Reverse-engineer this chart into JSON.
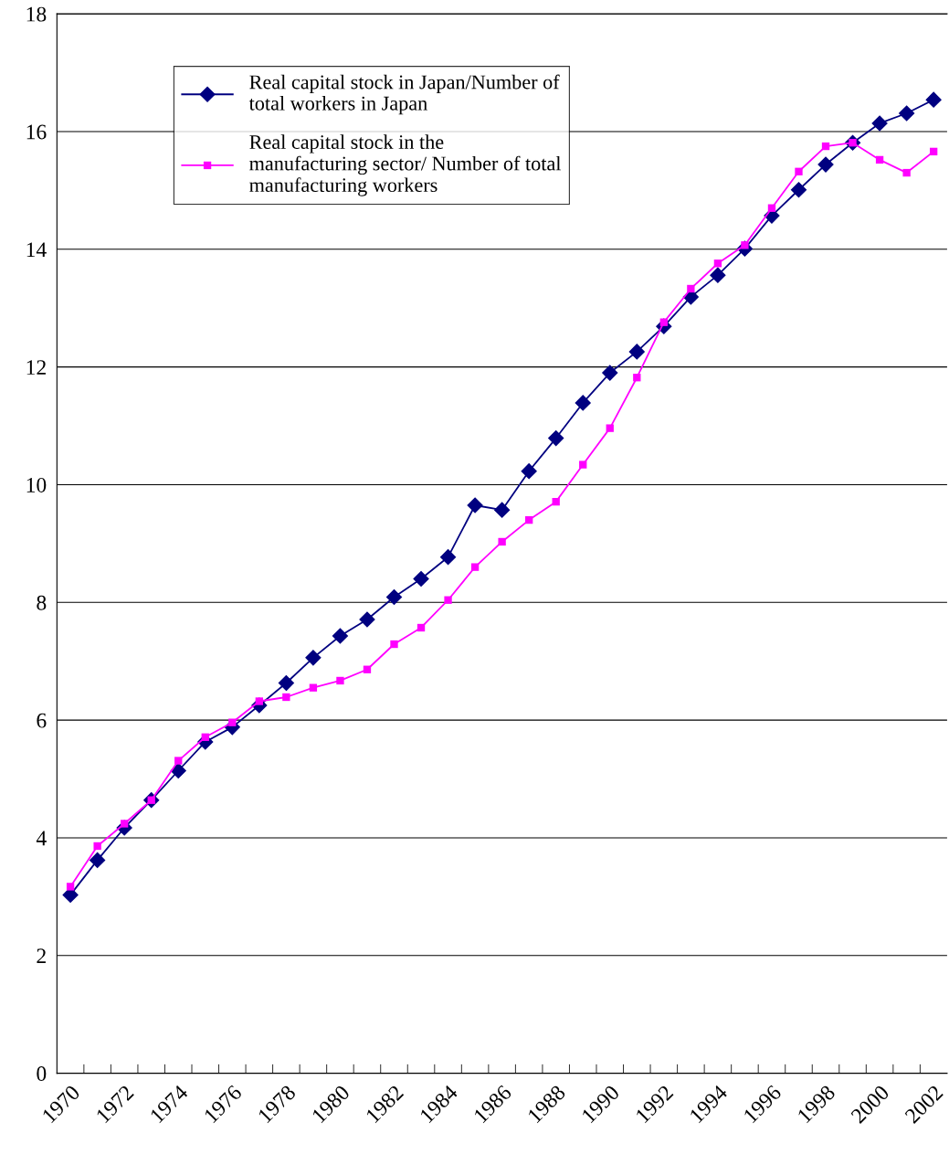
{
  "chart_data": {
    "type": "line",
    "categories": [
      "1970",
      null,
      "1972",
      null,
      "1974",
      null,
      "1976",
      null,
      "1978",
      null,
      "1980",
      null,
      "1982",
      null,
      "1984",
      null,
      "1986",
      null,
      "1988",
      null,
      "1990",
      null,
      "1992",
      null,
      "1994",
      null,
      "1996",
      null,
      "1998",
      null,
      "2000",
      null,
      "2002"
    ],
    "series": [
      {
        "name": "Real capital stock in Japan/Number of total workers in Japan",
        "color": "#000080",
        "marker": "diamond",
        "values": [
          3.03,
          3.62,
          4.17,
          4.64,
          5.14,
          5.63,
          5.88,
          6.25,
          6.63,
          7.06,
          7.43,
          7.71,
          8.09,
          8.4,
          8.77,
          9.65,
          9.57,
          10.23,
          10.79,
          11.39,
          11.9,
          12.26,
          12.69,
          13.19,
          13.56,
          14.01,
          14.57,
          15.01,
          15.44,
          15.81,
          16.14,
          16.31,
          16.54
        ]
      },
      {
        "name": "Real capital stock in the manufacturing sector/ Number of total manufacturing workers",
        "color": "#ff00ff",
        "marker": "square",
        "values": [
          3.17,
          3.86,
          4.24,
          4.64,
          5.31,
          5.71,
          5.96,
          6.32,
          6.39,
          6.55,
          6.67,
          6.86,
          7.29,
          7.57,
          8.04,
          8.6,
          9.03,
          9.4,
          9.71,
          10.34,
          10.96,
          11.82,
          12.76,
          13.33,
          13.76,
          14.07,
          14.7,
          15.32,
          15.75,
          15.81,
          15.52,
          15.3,
          15.66
        ]
      }
    ],
    "ylim": [
      0,
      18
    ],
    "yticks": [
      0,
      2,
      4,
      6,
      8,
      10,
      12,
      14,
      16,
      18
    ],
    "grid": "y",
    "legend": "top left",
    "line_style": "solid"
  }
}
